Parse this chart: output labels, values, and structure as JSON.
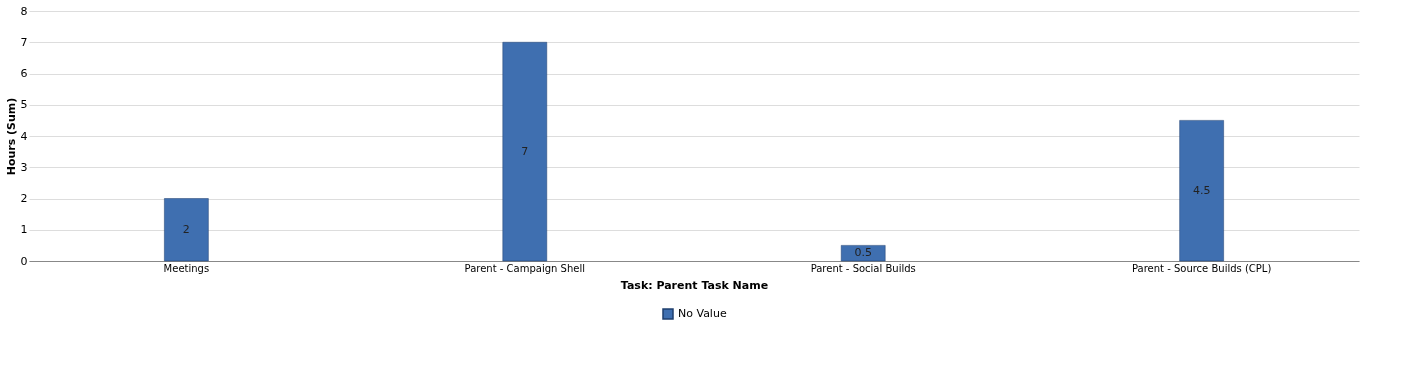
{
  "chart_data": {
    "type": "bar",
    "xlabel": "Task: Parent Task Name",
    "ylabel": "Hours (Sum)",
    "categories": [
      "Meetings",
      "Parent - Campaign Shell",
      "Parent - Social Builds",
      "Parent - Source Builds (CPL)"
    ],
    "series": [
      {
        "name": "No Value",
        "color": "#3f6fb0",
        "values": [
          2,
          7,
          0.5,
          4.5
        ]
      }
    ],
    "ylim": [
      0,
      8
    ],
    "yticks": [
      0,
      1,
      2,
      3,
      4,
      5,
      6,
      7,
      8
    ],
    "grid": "y",
    "legend": "bottom",
    "data_labels": true
  }
}
